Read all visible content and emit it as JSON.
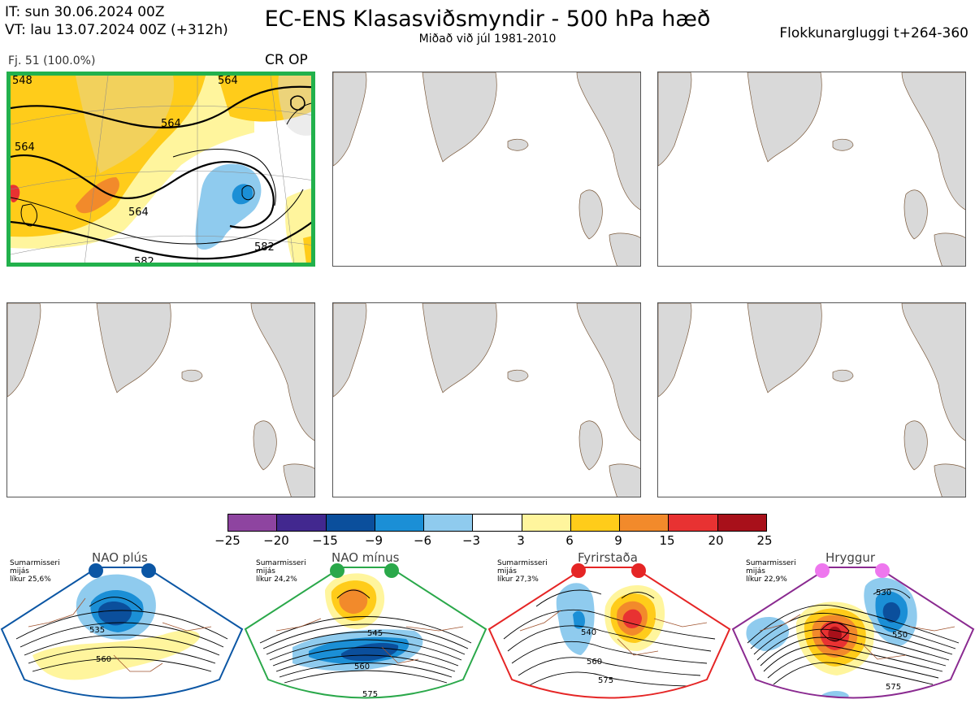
{
  "header": {
    "it_line": "IT: sun 30.06.2024 00Z",
    "vt_line": "VT: lau 13.07.2024 00Z  (+312h)",
    "title": "EC-ENS Klasasviðsmyndir - 500 hPa hæð",
    "subtitle": "Miðað við júl 1981-2010",
    "window": "Flokkunargluggi t+264-360"
  },
  "panel1": {
    "member_label": "Fj. 51 (100.0%)",
    "regime_code": "CR OP",
    "border_color": "#22b14c",
    "contour_labels": [
      "548",
      "564",
      "564",
      "564",
      "564",
      "582",
      "582"
    ]
  },
  "colorbar": {
    "ticks": [
      "−25",
      "−20",
      "−15",
      "−9",
      "−6",
      "−3",
      "3",
      "6",
      "9",
      "15",
      "20",
      "25"
    ],
    "colors": [
      "#8e44a0",
      "#42288f",
      "#0b4f9c",
      "#1b8fd6",
      "#8fcbee",
      "#ffffff",
      "#fff59d",
      "#ffcc1a",
      "#f28a2b",
      "#e83232",
      "#a8101a"
    ]
  },
  "regimes": [
    {
      "name": "NAO plús",
      "note": [
        "Sumarmisseri",
        "mijás",
        "líkur 25,6%"
      ],
      "color": "#0b56a4",
      "dot_color": "#0b56a4",
      "labels": [
        "535",
        "560"
      ]
    },
    {
      "name": "NAO mínus",
      "note": [
        "Sumarmisseri",
        "mijás",
        "líkur 24,2%"
      ],
      "color": "#2aa84a",
      "dot_color": "#2aa84a",
      "labels": [
        "545",
        "560",
        "575"
      ]
    },
    {
      "name": "Fyrirstaða",
      "note": [
        "Sumarmisseri",
        "mijás",
        "líkur 27,3%"
      ],
      "color": "#e52525",
      "dot_color": "#e52525",
      "labels": [
        "540",
        "560",
        "575"
      ]
    },
    {
      "name": "Hryggur",
      "note": [
        "Sumarmisseri",
        "mijás",
        "líkur 22,9%"
      ],
      "color": "#8a2a90",
      "dot_color": "#ee77ee",
      "labels": [
        "530",
        "550",
        "575"
      ]
    }
  ]
}
